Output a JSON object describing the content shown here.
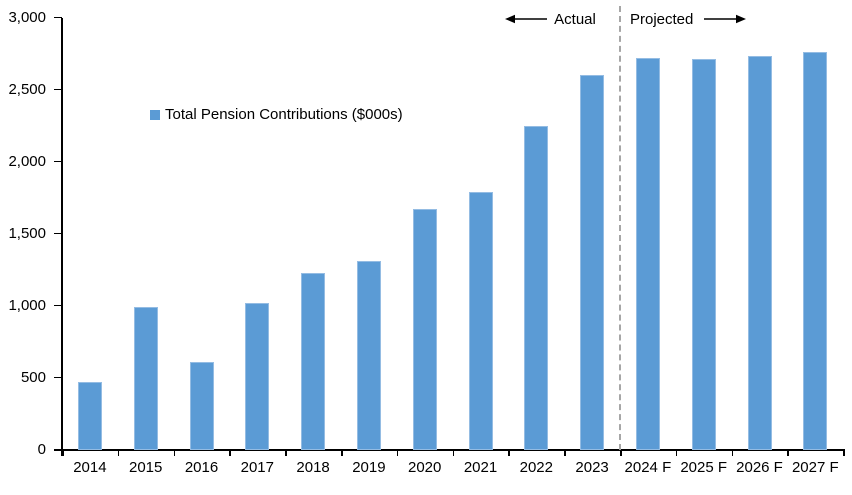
{
  "chart_data": {
    "type": "bar",
    "title": "",
    "legend_label": "Total Pension Contributions ($000s)",
    "categories": [
      "2014",
      "2015",
      "2016",
      "2017",
      "2018",
      "2019",
      "2020",
      "2021",
      "2022",
      "2023",
      "2024 F",
      "2025 F",
      "2026 F",
      "2027 F"
    ],
    "values": [
      470,
      990,
      610,
      1020,
      1230,
      1310,
      1670,
      1790,
      2250,
      2600,
      2720,
      2710,
      2730,
      2760
    ],
    "xlabel": "",
    "ylabel": "",
    "ylim": [
      0,
      3000
    ],
    "ytick_values": [
      0,
      500,
      1000,
      1500,
      2000,
      2500,
      3000
    ],
    "ytick_labels": [
      "0",
      "500",
      "1,000",
      "1,500",
      "2,000",
      "2,500",
      "3,000"
    ],
    "grid": false,
    "legend_position": "inside-upper-left",
    "bar_color": "#5B9BD5",
    "axis_color": "#000000",
    "divider": {
      "after_category": "2023",
      "style": "dashed",
      "color": "#A6A6A6"
    },
    "annotations": {
      "actual_label": "Actual",
      "projected_label": "Projected",
      "arrow_color": "#000000"
    }
  }
}
